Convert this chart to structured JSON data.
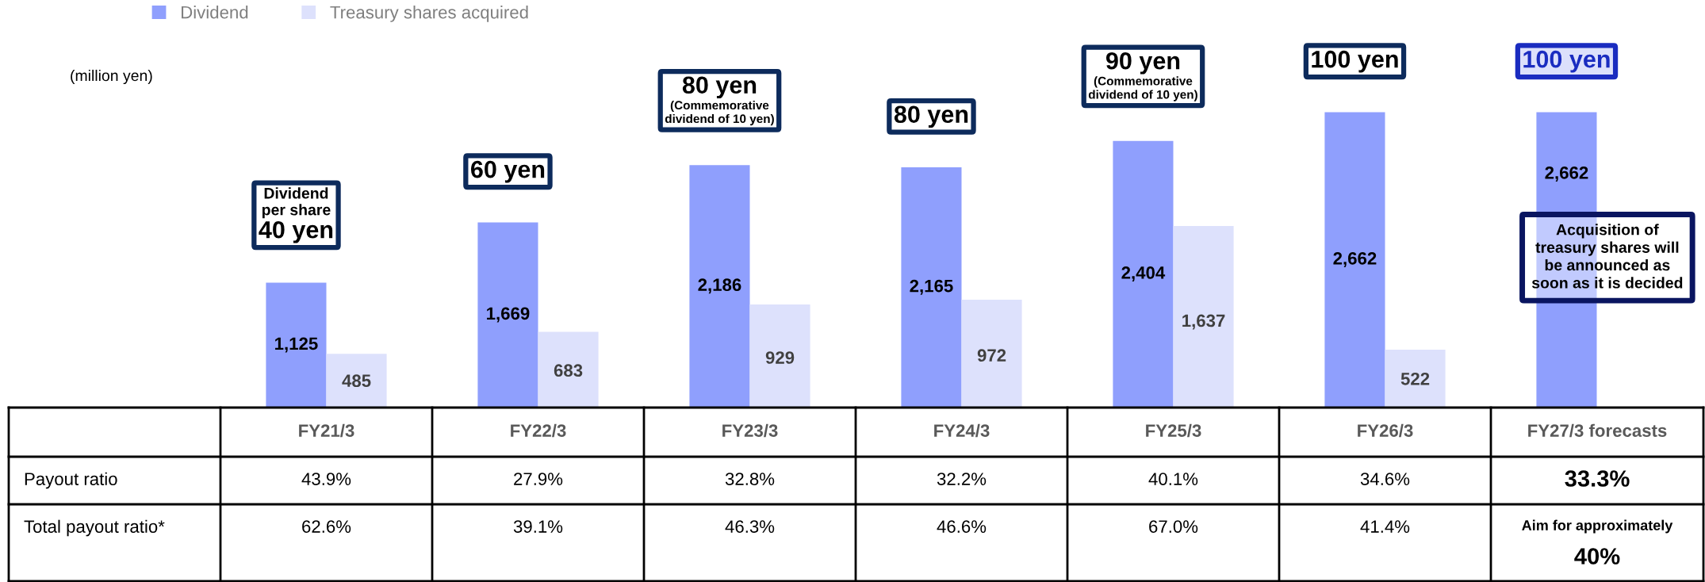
{
  "chart_data": {
    "type": "bar",
    "categories": [
      "FY21/3",
      "FY22/3",
      "FY23/3",
      "FY24/3",
      "FY25/3",
      "FY26/3",
      "FY27/3 forecasts"
    ],
    "series": [
      {
        "name": "Dividend",
        "color": "#8f9ffd",
        "values": [
          1125,
          1669,
          2186,
          2165,
          2404,
          2662,
          2662
        ],
        "value_labels": [
          "1,125",
          "1,669",
          "2,186",
          "2,165",
          "2,404",
          "2,662",
          "2,662"
        ]
      },
      {
        "name": "Treasury shares acquired",
        "color": "#dde1fc",
        "values": [
          485,
          683,
          929,
          972,
          1637,
          522,
          null
        ],
        "value_labels": [
          "485",
          "683",
          "929",
          "972",
          "1,637",
          "522",
          null
        ]
      }
    ],
    "legend": "top left",
    "annotations": [
      "(million yen)",
      "Dividend\nper share\n40 yen",
      "60 yen",
      "80 yen\n(Commemorative\ndividend of 10 yen)",
      "80 yen",
      "90 yen\n(Commemorative\ndividend of 10 yen)",
      "100 yen",
      "100 yen",
      "Acquisition of\ntreasury shares will\nbe announced as\nsoon as it is decided",
      "Payout ratio",
      "43.9%",
      "27.9%",
      "32.8%",
      "32.2%",
      "40.1%",
      "34.6%",
      "33.3%",
      "Total payout ratio*",
      "62.6%",
      "39.1%",
      "46.3%",
      "46.6%",
      "67.0%",
      "41.4%",
      "Aim for approximately\n40%"
    ]
  }
}
